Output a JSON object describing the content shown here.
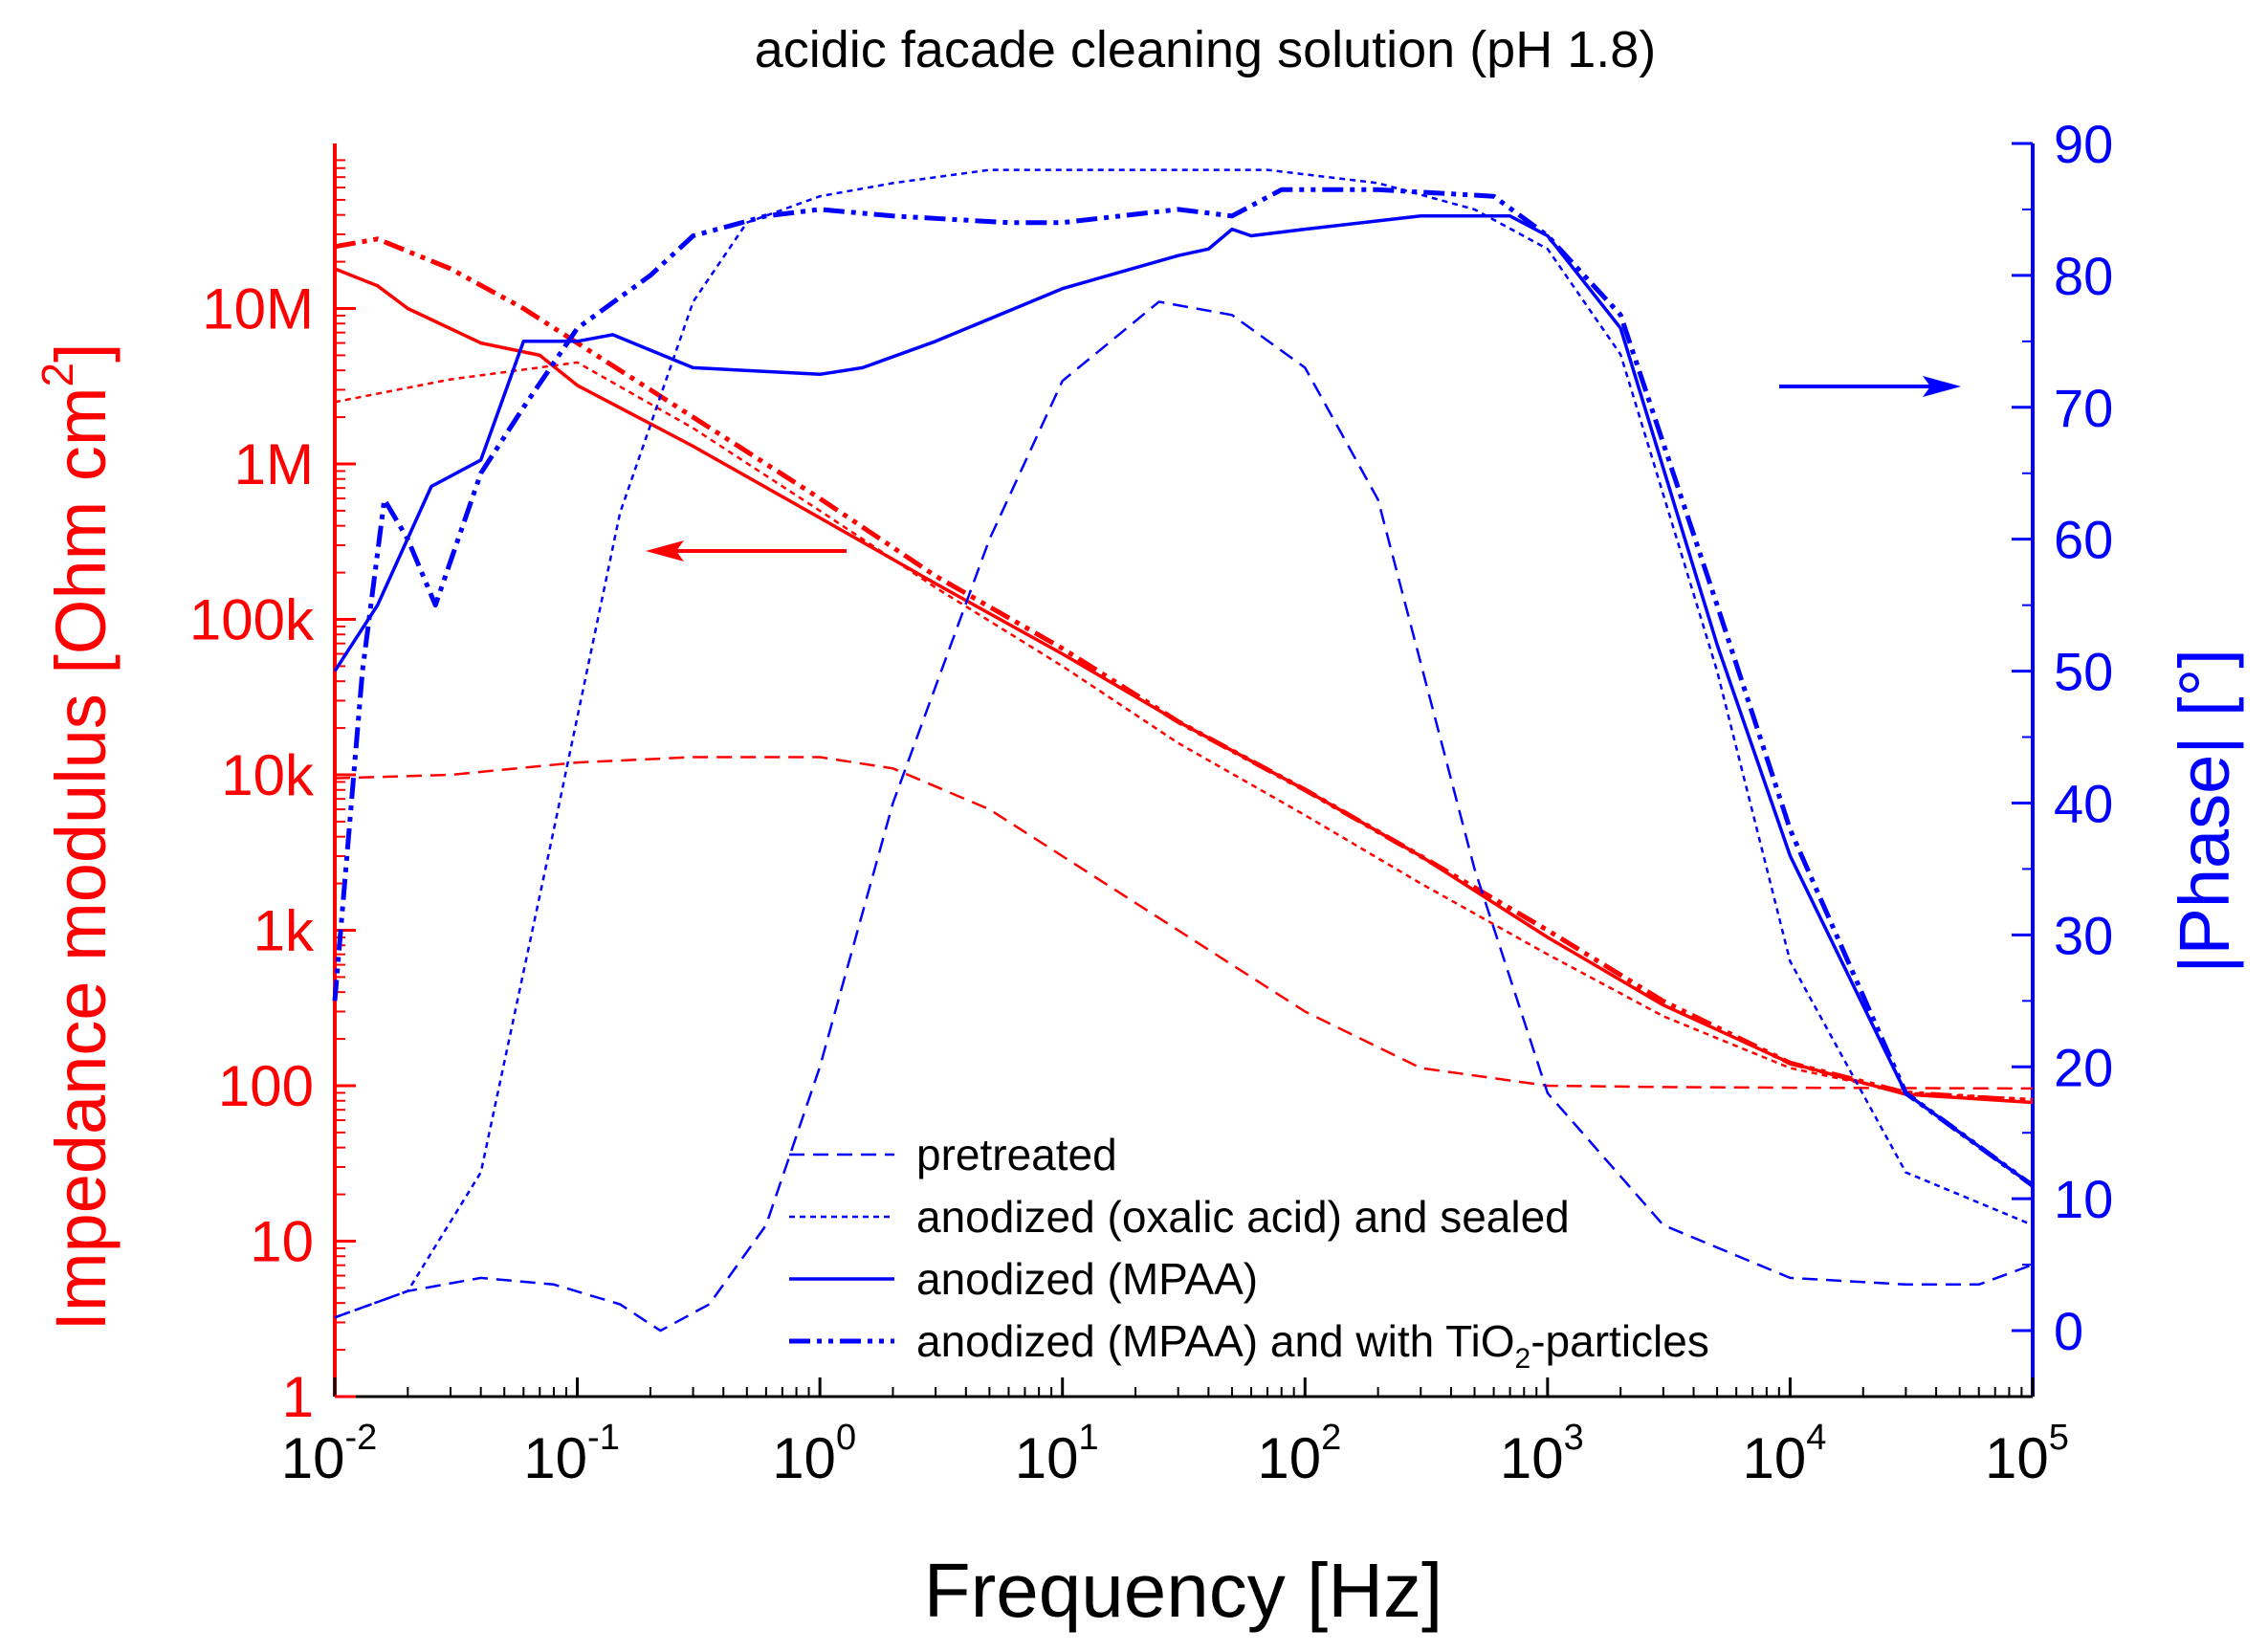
{
  "chart_data": {
    "type": "line",
    "title": "acidic facade cleaning solution (pH 1.8)",
    "xlabel": "Frequency [Hz]",
    "xscale": "log",
    "xlim": [
      0.01,
      100000
    ],
    "x_ticks": [
      {
        "base": "10",
        "exp": "-2"
      },
      {
        "base": "10",
        "exp": "-1"
      },
      {
        "base": "10",
        "exp": "0"
      },
      {
        "base": "10",
        "exp": "1"
      },
      {
        "base": "10",
        "exp": "2"
      },
      {
        "base": "10",
        "exp": "3"
      },
      {
        "base": "10",
        "exp": "4"
      },
      {
        "base": "10",
        "exp": "5"
      }
    ],
    "y_left": {
      "label_main": "Impedance modulus [Ohm cm",
      "label_sup": "2",
      "label_end": "]",
      "scale": "log",
      "lim": [
        1,
        100000000
      ],
      "ticks": [
        "1",
        "10",
        "100",
        "1k",
        "10k",
        "100k",
        "1M",
        "10M"
      ],
      "color": "#ff0000"
    },
    "y_right": {
      "label": "|Phase| [°]",
      "scale": "linear",
      "lim": [
        -5,
        90
      ],
      "ticks": [
        "0",
        "10",
        "20",
        "30",
        "40",
        "50",
        "60",
        "70",
        "80",
        "90"
      ],
      "color": "#0000ff"
    },
    "legend": {
      "position": "bottom-center",
      "entries": [
        {
          "text": "pretreated",
          "style": "dashed"
        },
        {
          "text": "anodized (oxalic acid) and sealed",
          "style": "dotted"
        },
        {
          "text": "anodized (MPAA)",
          "style": "solid"
        },
        {
          "text_pre": "anodized (MPAA) and with TiO",
          "text_sub": "2",
          "text_post": "-particles",
          "style": "dash-dot-dot"
        }
      ]
    },
    "series": [
      {
        "axis": "left",
        "style": "dashed",
        "color": "#ff0000",
        "x": [
          0.01,
          0.03,
          0.1,
          0.3,
          1,
          2,
          5,
          10,
          30,
          100,
          300,
          1000,
          3000,
          10000,
          100000
        ],
        "y": [
          9500,
          10000,
          12000,
          13000,
          13000,
          11000,
          6000,
          3000,
          1000,
          300,
          130,
          100,
          98,
          97,
          96
        ]
      },
      {
        "axis": "left",
        "style": "dotted",
        "color": "#ff0000",
        "x": [
          0.01,
          0.03,
          0.1,
          0.3,
          1,
          3,
          10,
          30,
          100,
          300,
          1000,
          3000,
          10000,
          30000,
          100000
        ],
        "y": [
          2500000,
          3500000,
          4500000,
          1700000,
          500000,
          160000,
          50000,
          16000,
          5500,
          2000,
          700,
          280,
          130,
          90,
          82
        ]
      },
      {
        "axis": "left",
        "style": "solid",
        "color": "#ff0000",
        "x": [
          0.01,
          0.015,
          0.02,
          0.04,
          0.07,
          0.1,
          0.3,
          1,
          3,
          10,
          30,
          100,
          300,
          1000,
          3000,
          10000,
          30000,
          100000
        ],
        "y": [
          18000000,
          14000000,
          10000000,
          6000000,
          5000000,
          3200000,
          1300000,
          450000,
          170000,
          60000,
          22000,
          8000,
          3000,
          900,
          330,
          140,
          88,
          78
        ]
      },
      {
        "axis": "left",
        "style": "dash-dot-dot",
        "color": "#ff0000",
        "x": [
          0.01,
          0.015,
          0.03,
          0.06,
          0.1,
          0.3,
          1,
          3,
          10,
          30,
          100,
          300,
          1000,
          3000,
          10000,
          30000,
          100000
        ],
        "y": [
          25000000,
          28000000,
          18000000,
          10000000,
          6000000,
          2000000,
          600000,
          190000,
          65000,
          22000,
          8000,
          3000,
          1000,
          350,
          140,
          90,
          80
        ]
      },
      {
        "axis": "right",
        "style": "dashed",
        "color": "#0000ff",
        "x": [
          0.01,
          0.02,
          0.04,
          0.08,
          0.15,
          0.22,
          0.35,
          0.6,
          1,
          2,
          5,
          10,
          25,
          50,
          100,
          200,
          500,
          1000,
          3000,
          10000,
          30000,
          60000,
          100000
        ],
        "y": [
          1,
          3,
          4,
          3.5,
          2,
          0,
          2,
          8,
          20,
          40,
          60,
          72,
          78,
          77,
          73,
          63,
          35,
          18,
          8,
          4,
          3.5,
          3.5,
          5
        ]
      },
      {
        "axis": "right",
        "style": "dotted",
        "color": "#0000ff",
        "x": [
          0.01,
          0.02,
          0.04,
          0.08,
          0.15,
          0.3,
          0.5,
          1,
          2,
          5,
          10,
          30,
          70,
          200,
          500,
          1000,
          2000,
          5000,
          10000,
          30000,
          100000
        ],
        "y": [
          1,
          3,
          12,
          38,
          62,
          78,
          84,
          86,
          87,
          88,
          88,
          88,
          88,
          87,
          85,
          82,
          74,
          50,
          28,
          12,
          8
        ]
      },
      {
        "axis": "right",
        "style": "solid",
        "color": "#0000ff",
        "x": [
          0.01,
          0.015,
          0.025,
          0.04,
          0.06,
          0.1,
          0.14,
          0.3,
          1,
          1.5,
          3,
          10,
          30,
          40,
          50,
          60,
          100,
          300,
          700,
          1000,
          2000,
          5000,
          10000,
          30000,
          100000
        ],
        "y": [
          50,
          55,
          64,
          66,
          75,
          75,
          75.5,
          73,
          72.5,
          73,
          75,
          79,
          81.5,
          82,
          83.5,
          83,
          83.5,
          84.5,
          84.5,
          83,
          76,
          52,
          36,
          18,
          11
        ]
      },
      {
        "axis": "right",
        "style": "dash-dot-dot",
        "color": "#0000ff",
        "x": [
          0.01,
          0.013,
          0.016,
          0.02,
          0.026,
          0.04,
          0.06,
          0.1,
          0.2,
          0.3,
          0.6,
          1,
          2,
          6,
          10,
          30,
          50,
          80,
          200,
          600,
          1000,
          2000,
          5000,
          10000,
          30000,
          100000
        ],
        "y": [
          25,
          50,
          63,
          60,
          55,
          65,
          70,
          76,
          80,
          83,
          84.5,
          85,
          84.5,
          84,
          84,
          85,
          84.5,
          86.5,
          86.5,
          86,
          83,
          77,
          55,
          38,
          18,
          11
        ]
      }
    ]
  }
}
